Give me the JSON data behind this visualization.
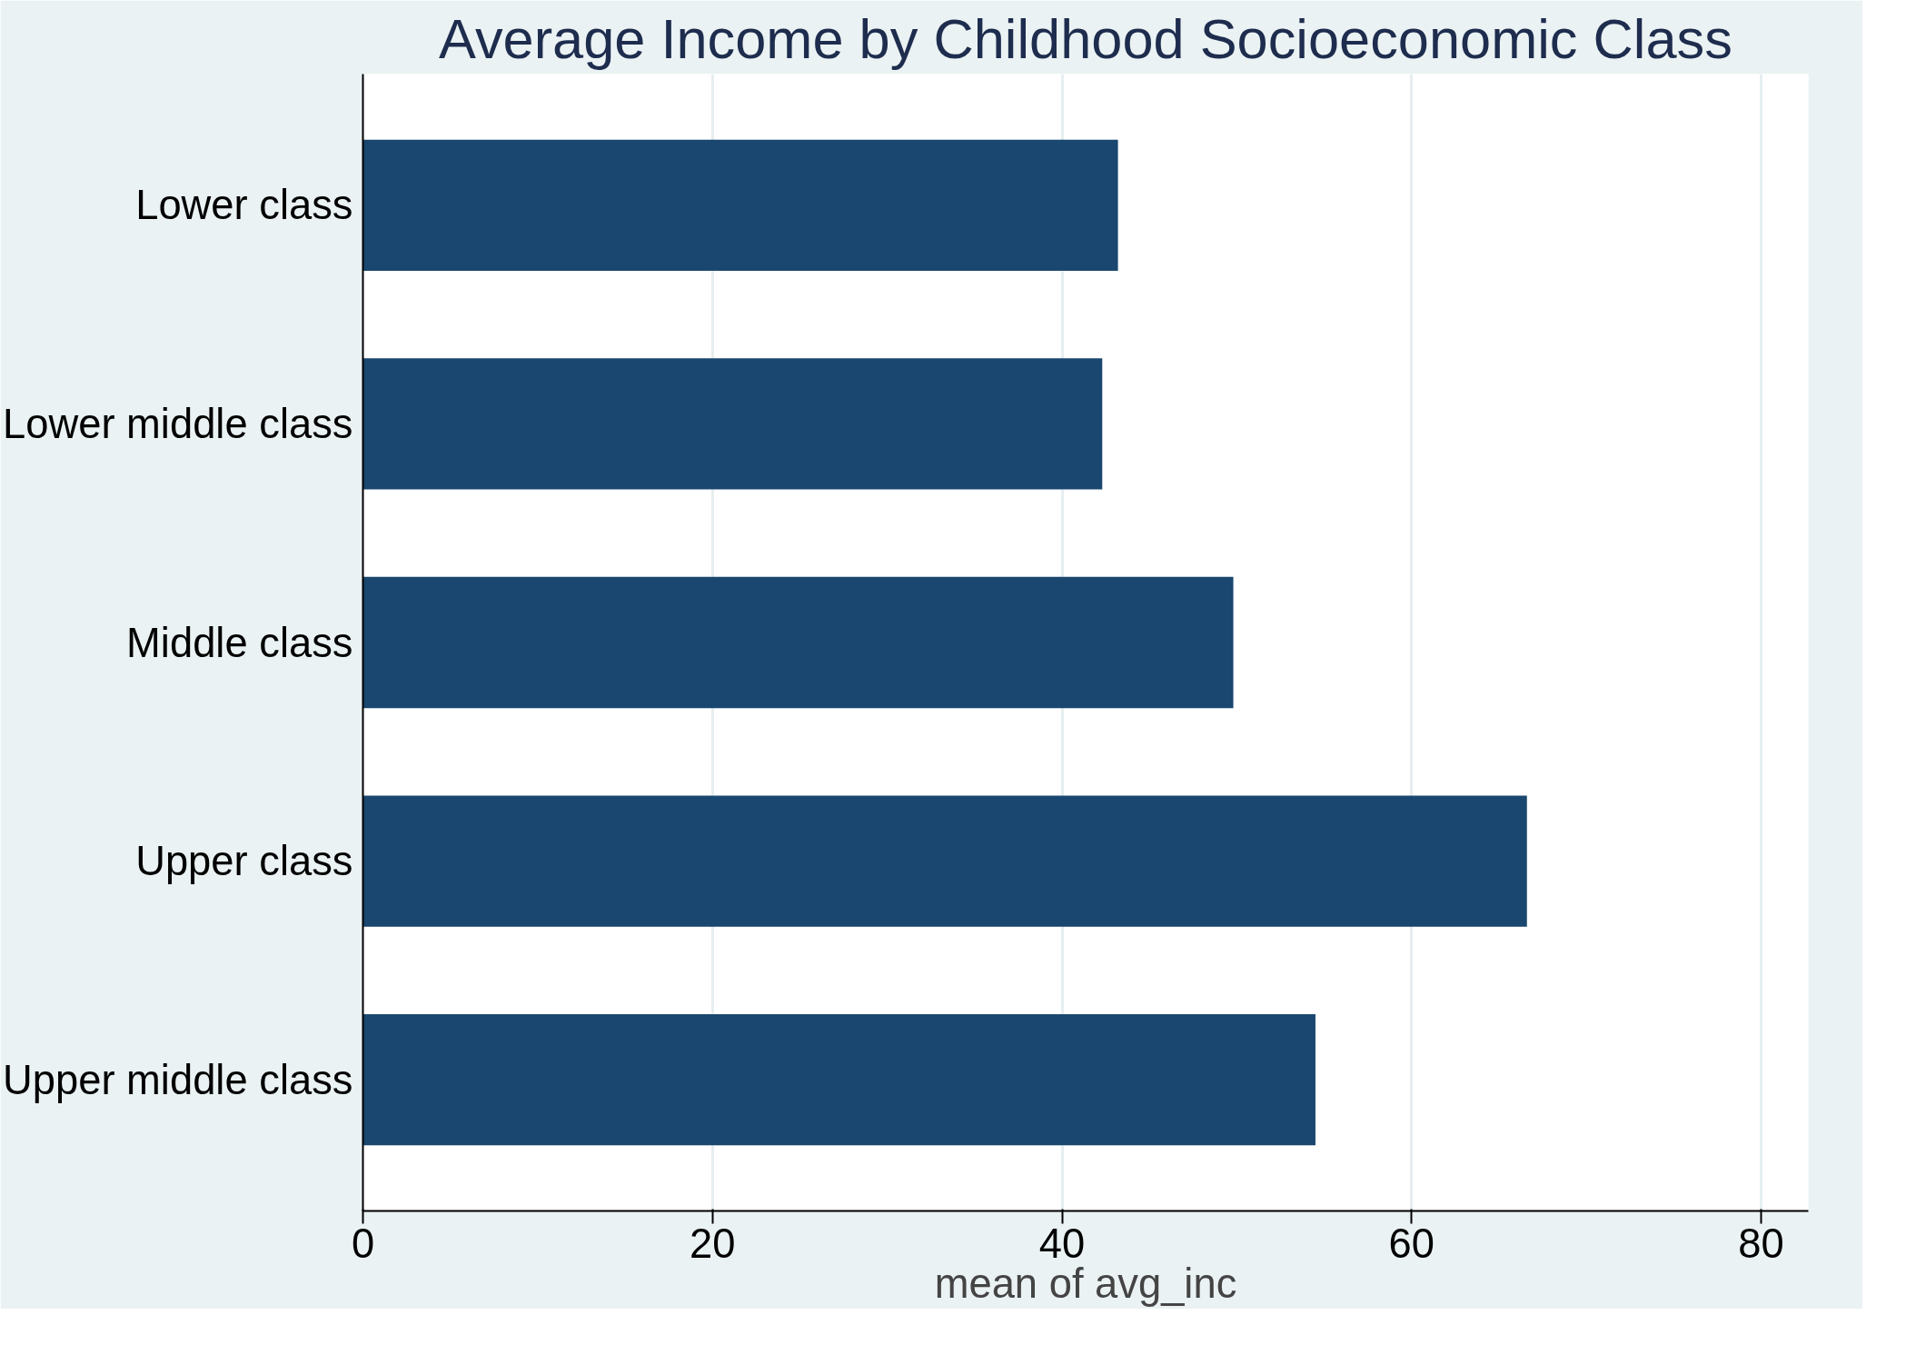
{
  "chart_data": {
    "type": "bar",
    "orientation": "horizontal",
    "title": "Average Income by Childhood Socioeconomic Class",
    "xlabel": "mean of avg_inc",
    "categories": [
      "Lower class",
      "Lower middle class",
      "Middle class",
      "Upper class",
      "Upper middle class"
    ],
    "values": [
      43.2,
      42.3,
      49.8,
      66.6,
      54.5
    ],
    "color": "#1a476f",
    "xlim": [
      0,
      82.7
    ],
    "xticks": [
      0,
      20,
      40,
      60,
      80
    ],
    "grid": "x"
  }
}
